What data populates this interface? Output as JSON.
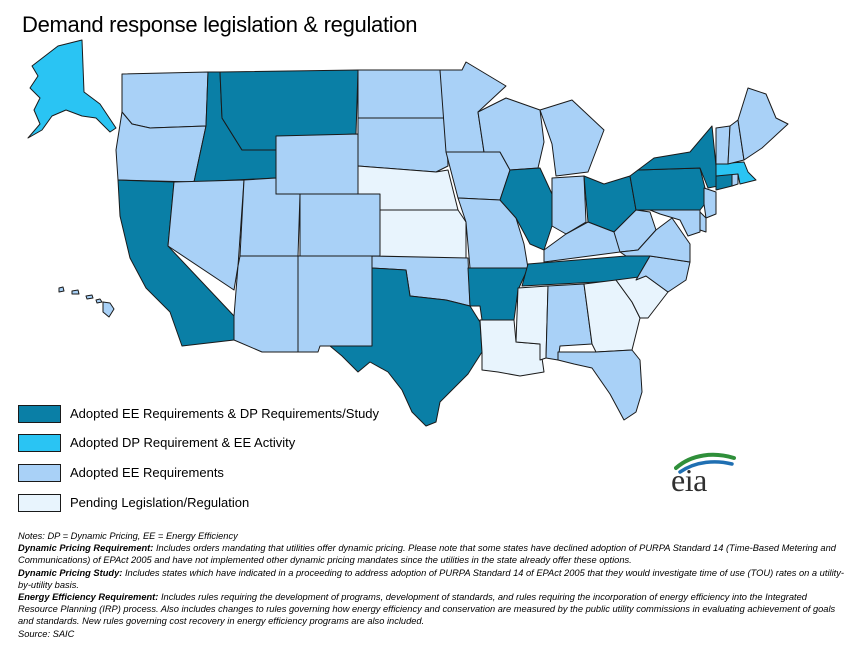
{
  "title": "Demand response legislation & regulation",
  "colors": {
    "ee_dp_study": "#0a7fa6",
    "dp_ee_activity": "#2ac4f3",
    "ee": "#a9d1f7",
    "pending": "#e8f4fd",
    "stroke": "#1a1a1a"
  },
  "legend": [
    {
      "label": "Adopted EE Requirements  & DP Requirements/Study",
      "category": "ee_dp_study"
    },
    {
      "label": "Adopted DP Requirement & EE Activity",
      "category": "dp_ee_activity"
    },
    {
      "label": "Adopted EE Requirements",
      "category": "ee"
    },
    {
      "label": "Pending Legislation/Regulation",
      "category": "pending"
    }
  ],
  "logo": {
    "text": "eia"
  },
  "notes": {
    "line1": "Notes: DP = Dynamic  Pricing,  EE = Energy Efficiency",
    "dp_req_term": "Dynamic Pricing Requirement:",
    "dp_req_text": " Includes orders mandating  that utilities  offer dynamic pricing.  Please  note that some states have declined adoption  of PURPA Standard 14 (Time-Based Metering and Communications)  of EPAct 2005 and have not implemented  other dynamic pricing mandates since the utilities  in the state already offer these options.",
    "dp_study_term": "Dynamic Pricing Study:",
    "dp_study_text": " Includes states which have indicated  in a proceeding  to address adoption of PURPA  Standard  14 of EPAct 2005 that they would investigate time of use (TOU) rates on a utility-by-utility  basis.",
    "ee_req_term": "Energy Efficiency Requirement:",
    "ee_req_text": "  Includes rules requiring  the development  of programs,  development  of standards, and rules requiring  the incorporation  of energy efficiency into the Integrated  Resource Planning  (IRP) process.  Also includes  changes to rules governing how energy efficiency and conservation are measured by the public  utility commissions  in evaluating  achievement  of goals and standards.  New rules governing cost recovery in energy efficiency programs are also included.",
    "source": "Source: SAIC"
  },
  "states": [
    {
      "id": "WA",
      "category": "ee"
    },
    {
      "id": "OR",
      "category": "ee"
    },
    {
      "id": "CA",
      "category": "ee_dp_study"
    },
    {
      "id": "ID",
      "category": "ee_dp_study"
    },
    {
      "id": "MT",
      "category": "ee_dp_study"
    },
    {
      "id": "NV",
      "category": "ee"
    },
    {
      "id": "UT",
      "category": "ee"
    },
    {
      "id": "AZ",
      "category": "ee"
    },
    {
      "id": "WY",
      "category": "ee"
    },
    {
      "id": "CO",
      "category": "ee"
    },
    {
      "id": "NM",
      "category": "ee"
    },
    {
      "id": "ND",
      "category": "ee"
    },
    {
      "id": "SD",
      "category": "ee"
    },
    {
      "id": "NE",
      "category": "pending"
    },
    {
      "id": "KS",
      "category": "pending"
    },
    {
      "id": "OK",
      "category": "ee"
    },
    {
      "id": "TX",
      "category": "ee_dp_study"
    },
    {
      "id": "MN",
      "category": "ee"
    },
    {
      "id": "IA",
      "category": "ee"
    },
    {
      "id": "MO",
      "category": "ee"
    },
    {
      "id": "AR",
      "category": "ee_dp_study"
    },
    {
      "id": "LA",
      "category": "pending"
    },
    {
      "id": "WI",
      "category": "ee"
    },
    {
      "id": "IL",
      "category": "ee_dp_study"
    },
    {
      "id": "MI",
      "category": "ee"
    },
    {
      "id": "IN",
      "category": "ee"
    },
    {
      "id": "OH",
      "category": "ee_dp_study"
    },
    {
      "id": "KY",
      "category": "ee"
    },
    {
      "id": "TN",
      "category": "ee_dp_study"
    },
    {
      "id": "MS",
      "category": "pending"
    },
    {
      "id": "AL",
      "category": "ee"
    },
    {
      "id": "GA",
      "category": "pending"
    },
    {
      "id": "FL",
      "category": "ee"
    },
    {
      "id": "SC",
      "category": "pending"
    },
    {
      "id": "NC",
      "category": "ee"
    },
    {
      "id": "VA",
      "category": "ee"
    },
    {
      "id": "WV",
      "category": "ee"
    },
    {
      "id": "PA",
      "category": "ee_dp_study"
    },
    {
      "id": "NY",
      "category": "ee_dp_study"
    },
    {
      "id": "NJ",
      "category": "ee"
    },
    {
      "id": "DE",
      "category": "ee"
    },
    {
      "id": "MD",
      "category": "ee"
    },
    {
      "id": "CT",
      "category": "ee_dp_study"
    },
    {
      "id": "RI",
      "category": "ee"
    },
    {
      "id": "MA",
      "category": "dp_ee_activity"
    },
    {
      "id": "VT",
      "category": "ee"
    },
    {
      "id": "NH",
      "category": "ee"
    },
    {
      "id": "ME",
      "category": "ee"
    },
    {
      "id": "AK",
      "category": "dp_ee_activity"
    },
    {
      "id": "HI",
      "category": "ee"
    }
  ]
}
